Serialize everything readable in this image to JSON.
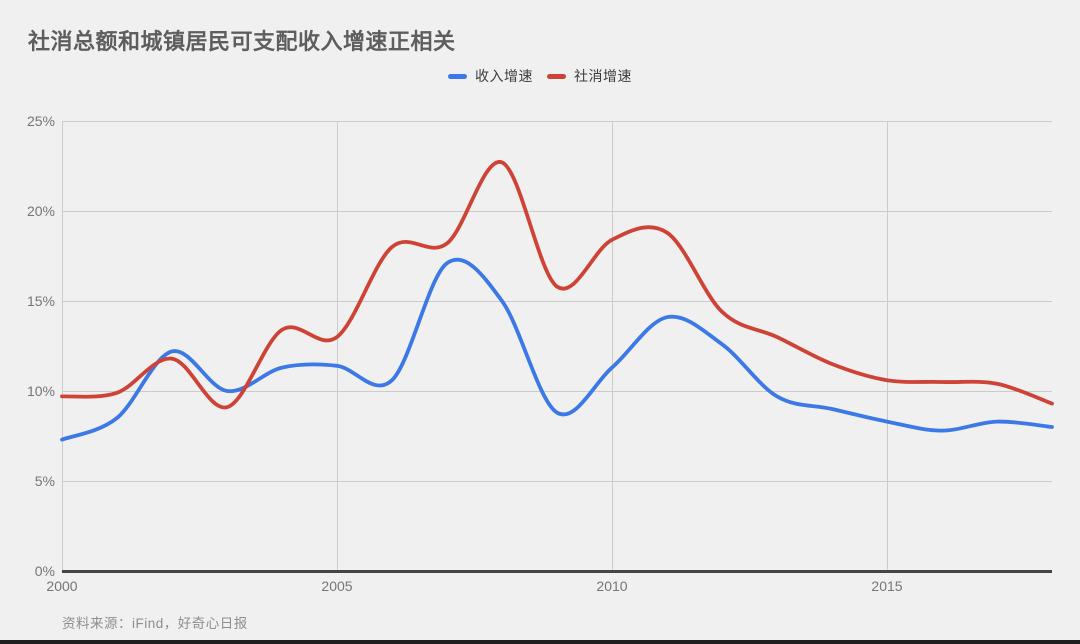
{
  "page": {
    "background": "#f0f0f1"
  },
  "title": {
    "text": "社消总额和城镇居民可支配收入增速正相关",
    "color": "#5e5e5e"
  },
  "legend": {
    "items": [
      {
        "label": "收入增速",
        "color": "#3c78e8"
      },
      {
        "label": "社消增速",
        "color": "#cf4336"
      }
    ]
  },
  "source": {
    "text": "资料来源：iFind，好奇心日报"
  },
  "chart_data": {
    "type": "line",
    "title": "社消总额和城镇居民可支配收入增速正相关",
    "x": [
      2000,
      2001,
      2002,
      2003,
      2004,
      2005,
      2006,
      2007,
      2008,
      2009,
      2010,
      2011,
      2012,
      2013,
      2014,
      2015,
      2016,
      2017,
      2018
    ],
    "series": [
      {
        "name": "收入增速",
        "color": "#3c78e8",
        "values": [
          7.3,
          8.5,
          12.2,
          10.0,
          11.3,
          11.4,
          10.6,
          17.1,
          15.0,
          8.8,
          11.3,
          14.1,
          12.6,
          9.7,
          9.0,
          8.3,
          7.8,
          8.3,
          8.0
        ]
      },
      {
        "name": "社消增速",
        "color": "#cf4336",
        "values": [
          9.7,
          9.9,
          11.8,
          9.1,
          13.4,
          13.0,
          18.0,
          18.2,
          22.7,
          15.8,
          18.4,
          18.8,
          14.4,
          13.0,
          11.5,
          10.6,
          10.5,
          10.4,
          9.3
        ]
      }
    ],
    "xlabel": "",
    "ylabel": "",
    "x_tick_values": [
      2000,
      2005,
      2010,
      2015
    ],
    "x_tick_labels": [
      "2000",
      "2005",
      "2010",
      "2015"
    ],
    "y_tick_values": [
      0,
      5,
      10,
      15,
      20,
      25
    ],
    "y_tick_labels": [
      "0%",
      "5%",
      "10%",
      "15%",
      "20%",
      "25%"
    ],
    "xlim": [
      2000,
      2018
    ],
    "ylim": [
      0,
      25
    ],
    "grid": true,
    "legend_position": "top-center",
    "line_style": "smooth"
  },
  "style": {
    "grid_color": "#cbcbcb",
    "axis_color": "#454545",
    "tick_color": "#757575",
    "source_color": "#8e8e8e",
    "bottom_bar_color": "#1f1f1f"
  }
}
